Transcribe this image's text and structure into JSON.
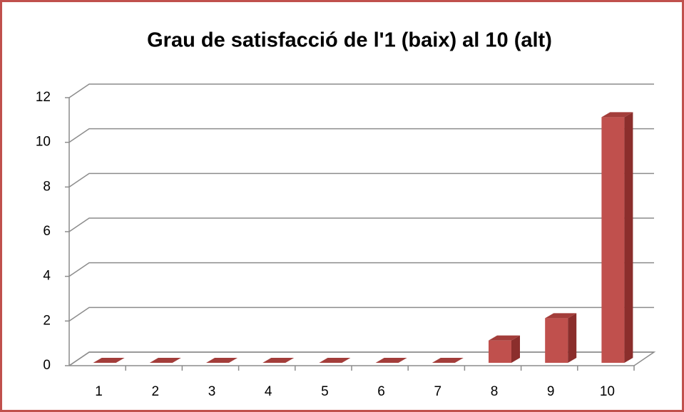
{
  "chart_data": {
    "type": "bar3d",
    "title": "Grau de satisfacció de l'1 (baix) al 10 (alt)",
    "categories": [
      "1",
      "2",
      "3",
      "4",
      "5",
      "6",
      "7",
      "8",
      "9",
      "10"
    ],
    "values": [
      0,
      0,
      0,
      0,
      0,
      0,
      0,
      1,
      2,
      11
    ],
    "color": "#c0504d",
    "ylim": [
      0,
      12
    ],
    "yticks": [
      0,
      2,
      4,
      6,
      8,
      10,
      12
    ],
    "grid": true
  }
}
